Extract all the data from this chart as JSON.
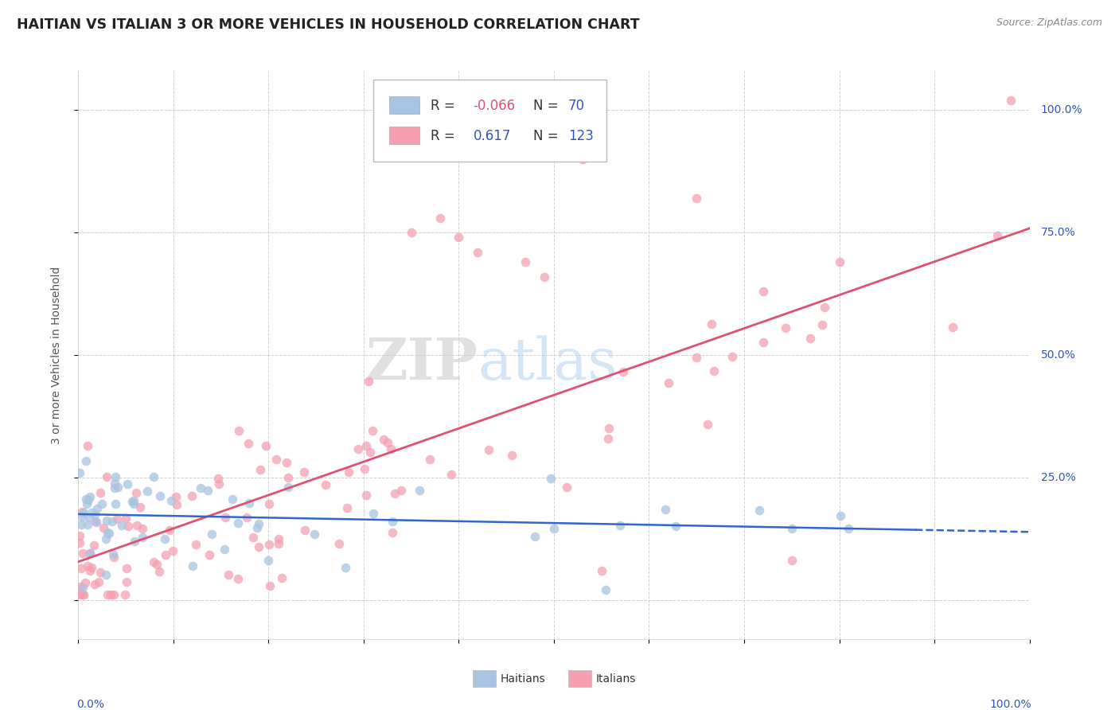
{
  "title": "HAITIAN VS ITALIAN 3 OR MORE VEHICLES IN HOUSEHOLD CORRELATION CHART",
  "source": "Source: ZipAtlas.com",
  "ylabel": "3 or more Vehicles in Household",
  "legend_haitians": "Haitians",
  "legend_italians": "Italians",
  "r_haitian": -0.066,
  "n_haitian": 70,
  "r_italian": 0.617,
  "n_italian": 123,
  "right_yticks": [
    "100.0%",
    "75.0%",
    "50.0%",
    "25.0%"
  ],
  "right_ytick_vals": [
    1.0,
    0.75,
    0.5,
    0.25
  ],
  "haitian_color": "#a8c4e0",
  "italian_color": "#f4a0b0",
  "haitian_line_color": "#3366cc",
  "italian_line_color": "#e05070",
  "background_color": "#ffffff",
  "watermark_zip": "ZIP",
  "watermark_atlas": "atlas",
  "legend_r_color": "#3355bb",
  "legend_n_color": "#3355bb",
  "legend_neg_r_color": "#e05070",
  "title_color": "#222222",
  "source_color": "#888888",
  "ylabel_color": "#555555",
  "grid_color": "#cccccc",
  "axis_label_color": "#3355bb"
}
